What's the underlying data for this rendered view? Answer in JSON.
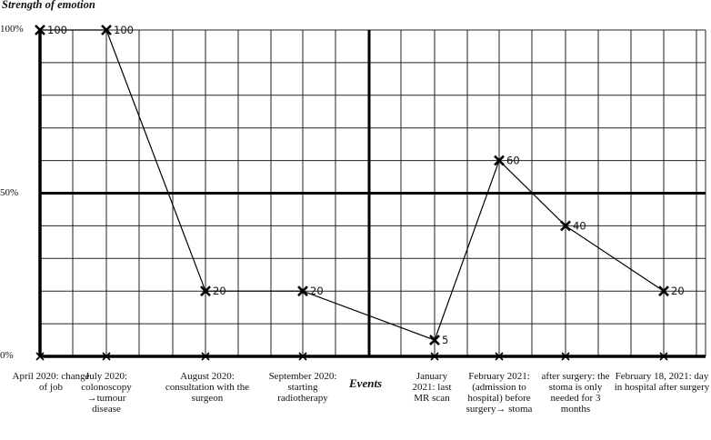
{
  "chart_data": {
    "type": "line",
    "ylabel": "Strength of emotion",
    "xlabel": "Events",
    "ylim": [
      0,
      100
    ],
    "yticks": [
      "0%",
      "50%",
      "100%"
    ],
    "yticks_values": [
      0,
      50,
      100
    ],
    "grid": true,
    "categories": [
      "April 2020: change of job",
      "July 2020: colonoscopy →tumour disease",
      "August 2020: consultation with the surgeon",
      "September 2020: starting radiotherapy",
      "January 2021: last MR scan",
      "February 2021: (admission to hospital) before surgery→ stoma",
      "after surgery: the stoma is only needed for 3 months",
      "February 18, 2021: day in hospital after surgery"
    ],
    "values": [
      100,
      100,
      20,
      20,
      5,
      60,
      40,
      20
    ],
    "data_labels": [
      "100",
      "100",
      "20",
      "20",
      "5",
      "60",
      "40",
      "20"
    ]
  }
}
